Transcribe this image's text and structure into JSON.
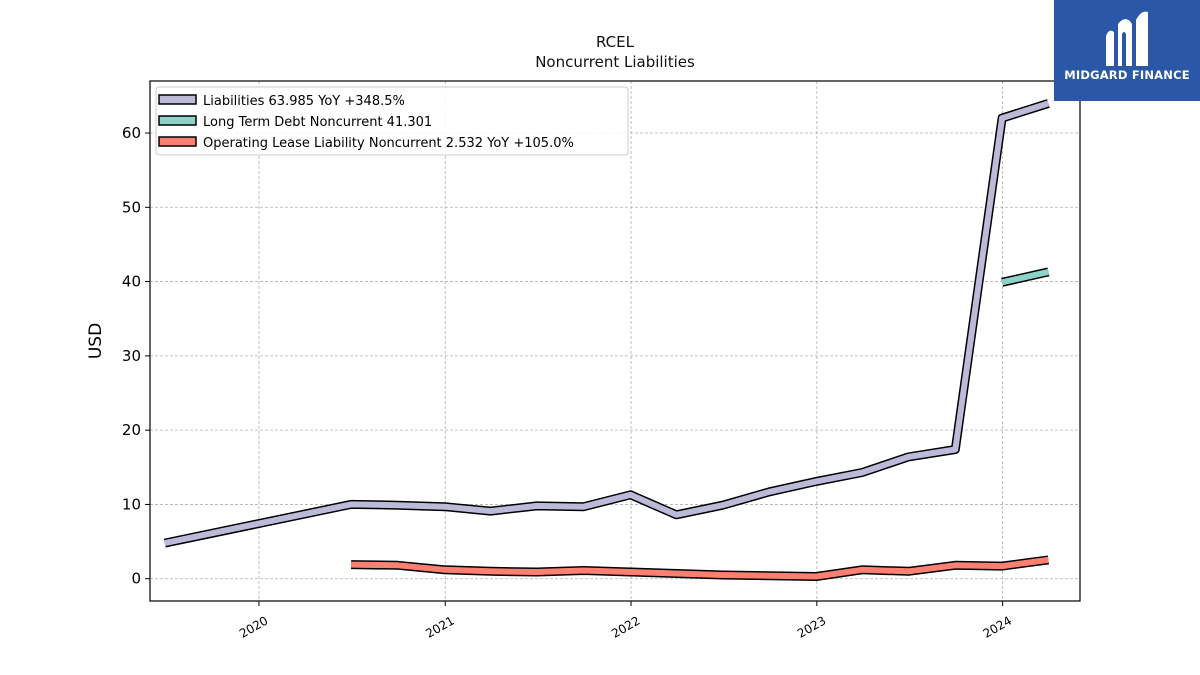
{
  "brand": {
    "name": "MIDGARD FINANCE",
    "color": "#2b58a6"
  },
  "chart_data": {
    "type": "line",
    "title": "RCEL",
    "subtitle": "Noncurrent  Liabilities",
    "xlabel": "",
    "ylabel": "USD",
    "grid": true,
    "legend_position": "top-left",
    "xlim": [
      "2019-06-01",
      "2024-06-01"
    ],
    "ylim": [
      -3,
      67
    ],
    "x_ticks": [
      "2020",
      "2021",
      "2022",
      "2023",
      "2024"
    ],
    "y_ticks": [
      0,
      10,
      20,
      30,
      40,
      50,
      60
    ],
    "series": [
      {
        "name": "Liabilities",
        "legend_label": "Liabilities  63.985 YoY +348.5%",
        "color": "#bcbad9",
        "points": [
          [
            "2019-06-30",
            4.8
          ],
          [
            "2020-06-30",
            10.0
          ],
          [
            "2020-09-30",
            9.9
          ],
          [
            "2020-12-31",
            9.7
          ],
          [
            "2021-03-31",
            9.1
          ],
          [
            "2021-06-30",
            9.8
          ],
          [
            "2021-09-30",
            9.7
          ],
          [
            "2021-12-31",
            11.3
          ],
          [
            "2022-03-31",
            8.6
          ],
          [
            "2022-06-30",
            9.9
          ],
          [
            "2022-09-30",
            11.7
          ],
          [
            "2022-12-31",
            13.1
          ],
          [
            "2023-03-31",
            14.3
          ],
          [
            "2023-06-30",
            16.4
          ],
          [
            "2023-09-30",
            17.4
          ],
          [
            "2023-12-31",
            62.0
          ],
          [
            "2024-03-31",
            63.985
          ]
        ]
      },
      {
        "name": "Long Term Debt Noncurrent",
        "legend_label": "Long Term Debt Noncurrent  41.301",
        "color": "#8dd3c7",
        "points": [
          [
            "2023-12-31",
            39.9
          ],
          [
            "2024-03-31",
            41.301
          ]
        ]
      },
      {
        "name": "Operating Lease Liability Noncurrent",
        "legend_label": "Operating Lease Liability Noncurrent  2.532 YoY +105.0%",
        "color": "#fb8072",
        "points": [
          [
            "2020-06-30",
            1.9
          ],
          [
            "2020-09-30",
            1.8
          ],
          [
            "2020-12-31",
            1.2
          ],
          [
            "2021-03-31",
            1.0
          ],
          [
            "2021-06-30",
            0.9
          ],
          [
            "2021-09-30",
            1.1
          ],
          [
            "2021-12-31",
            0.9
          ],
          [
            "2022-03-31",
            0.7
          ],
          [
            "2022-06-30",
            0.5
          ],
          [
            "2022-09-30",
            0.4
          ],
          [
            "2022-12-31",
            0.3
          ],
          [
            "2023-03-31",
            1.2
          ],
          [
            "2023-06-30",
            1.0
          ],
          [
            "2023-09-30",
            1.8
          ],
          [
            "2023-12-31",
            1.7
          ],
          [
            "2024-03-31",
            2.532
          ]
        ]
      }
    ]
  }
}
